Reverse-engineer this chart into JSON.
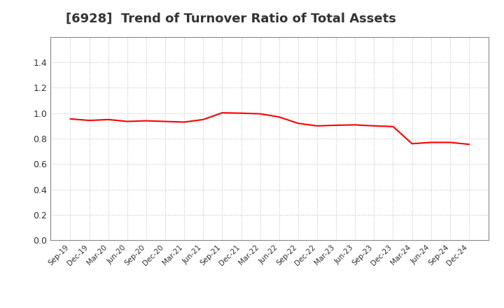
{
  "title": "[6928]  Trend of Turnover Ratio of Total Assets",
  "title_fontsize": 13,
  "title_color": "#333333",
  "line_color": "#FF0000",
  "line_width": 1.5,
  "background_color": "#FFFFFF",
  "grid_color": "#BBBBBB",
  "ylim": [
    0.0,
    1.6
  ],
  "yticks": [
    0.0,
    0.2,
    0.4,
    0.6,
    0.8,
    1.0,
    1.2,
    1.4
  ],
  "labels": [
    "Sep-19",
    "Dec-19",
    "Mar-20",
    "Jun-20",
    "Sep-20",
    "Dec-20",
    "Mar-21",
    "Jun-21",
    "Sep-21",
    "Dec-21",
    "Mar-22",
    "Jun-22",
    "Sep-22",
    "Dec-22",
    "Mar-23",
    "Jun-23",
    "Sep-23",
    "Dec-23",
    "Mar-24",
    "Jun-24",
    "Sep-24",
    "Dec-24"
  ],
  "values": [
    0.955,
    0.943,
    0.95,
    0.935,
    0.94,
    0.935,
    0.93,
    0.95,
    1.003,
    1.0,
    0.995,
    0.97,
    0.92,
    0.9,
    0.905,
    0.908,
    0.9,
    0.895,
    0.76,
    0.77,
    0.77,
    0.755
  ]
}
